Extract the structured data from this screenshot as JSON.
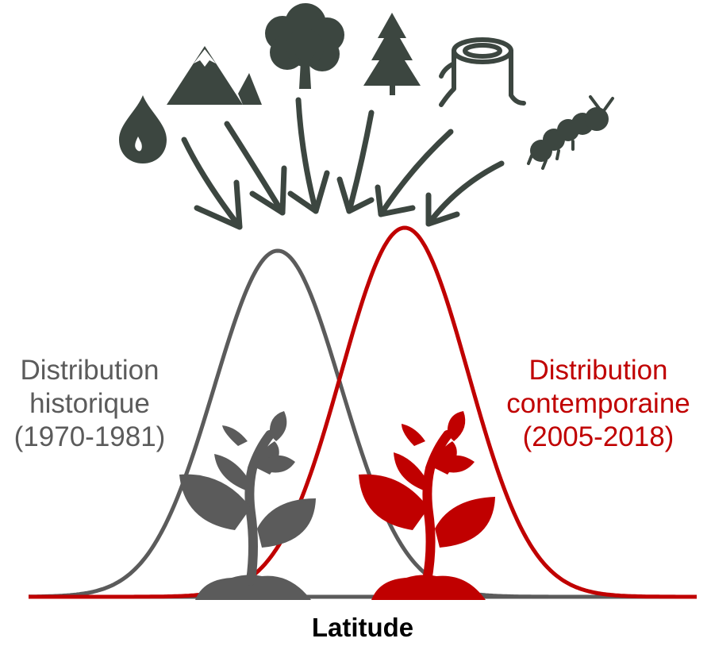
{
  "colors": {
    "historical": "#5b5b5b",
    "contemporary": "#c00000",
    "icons": "#3c4640",
    "baseline": "#5b5b5b"
  },
  "icons": [
    "water-drop-icon",
    "mountain-icon",
    "deciduous-tree-icon",
    "conifer-tree-icon",
    "tree-stump-icon",
    "caterpillar-icon"
  ],
  "labels": {
    "historical": [
      "Distribution",
      "historique",
      "(1970-1981)"
    ],
    "contemporary": [
      "Distribution",
      "contemporaine",
      "(2005-2018)"
    ],
    "x_axis": "Latitude"
  }
}
